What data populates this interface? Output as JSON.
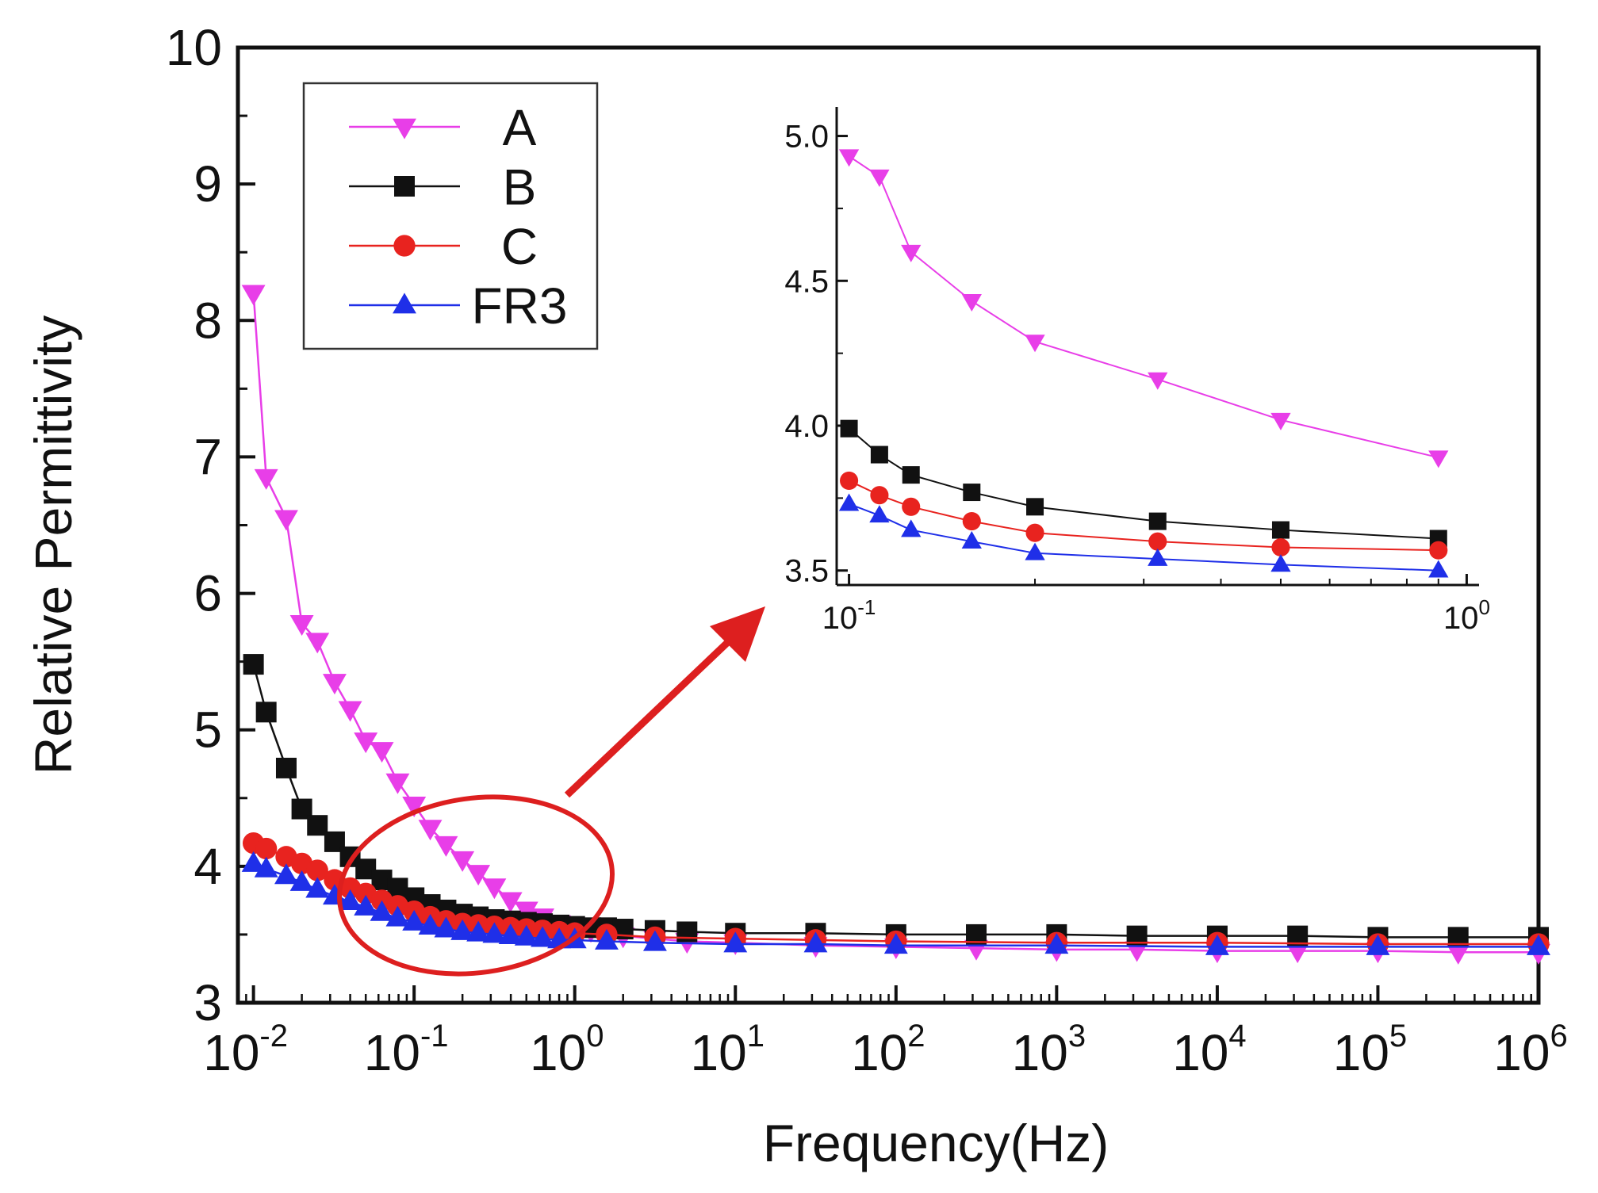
{
  "chart_data": [
    {
      "type": "line",
      "xscale": "log",
      "xlabel": "Frequency(Hz)",
      "ylabel": "Relative Permittivity",
      "ylim": [
        3,
        10
      ],
      "xlim": [
        0.008,
        1000000
      ],
      "yticks": [
        "3",
        "4",
        "5",
        "6",
        "7",
        "8",
        "9",
        "10"
      ],
      "xticks": [
        {
          "base": "10",
          "exp": "-2",
          "value": 0.01
        },
        {
          "base": "10",
          "exp": "-1",
          "value": 0.1
        },
        {
          "base": "10",
          "exp": "0",
          "value": 1
        },
        {
          "base": "10",
          "exp": "1",
          "value": 10
        },
        {
          "base": "10",
          "exp": "2",
          "value": 100
        },
        {
          "base": "10",
          "exp": "3",
          "value": 1000
        },
        {
          "base": "10",
          "exp": "4",
          "value": 10000
        },
        {
          "base": "10",
          "exp": "5",
          "value": 100000
        },
        {
          "base": "10",
          "exp": "6",
          "value": 1000000
        }
      ],
      "legend_position": "top-left",
      "series": [
        {
          "name": "A",
          "color": "#e83ee8",
          "marker": "triangle-down",
          "x": [
            0.01,
            0.012,
            0.016,
            0.02,
            0.025,
            0.032,
            0.04,
            0.05,
            0.063,
            0.079,
            0.1,
            0.126,
            0.158,
            0.2,
            0.251,
            0.316,
            0.398,
            0.5,
            0.63,
            0.8,
            1.0,
            1.26,
            1.58,
            2.0,
            3.16,
            5.0,
            10,
            31.6,
            100,
            316,
            1000,
            3162,
            10000,
            31623,
            100000,
            316228,
            1000000
          ],
          "values": [
            8.2,
            6.85,
            6.55,
            5.78,
            5.65,
            5.35,
            5.15,
            4.92,
            4.85,
            4.62,
            4.45,
            4.28,
            4.16,
            4.05,
            3.95,
            3.85,
            3.75,
            3.68,
            3.63,
            3.58,
            3.55,
            3.53,
            3.51,
            3.49,
            3.47,
            3.45,
            3.44,
            3.42,
            3.41,
            3.4,
            3.39,
            3.39,
            3.38,
            3.38,
            3.38,
            3.37,
            3.37
          ]
        },
        {
          "name": "B",
          "color": "#111111",
          "marker": "square",
          "x": [
            0.01,
            0.012,
            0.016,
            0.02,
            0.025,
            0.032,
            0.04,
            0.05,
            0.063,
            0.079,
            0.1,
            0.126,
            0.158,
            0.2,
            0.251,
            0.316,
            0.398,
            0.5,
            0.63,
            0.8,
            1.0,
            1.26,
            1.58,
            2.0,
            3.16,
            5.0,
            10,
            31.6,
            100,
            316,
            1000,
            3162,
            10000,
            31623,
            100000,
            316228,
            1000000
          ],
          "values": [
            5.48,
            5.13,
            4.72,
            4.42,
            4.3,
            4.18,
            4.07,
            3.98,
            3.9,
            3.84,
            3.77,
            3.72,
            3.68,
            3.65,
            3.63,
            3.61,
            3.6,
            3.59,
            3.58,
            3.57,
            3.56,
            3.55,
            3.55,
            3.54,
            3.53,
            3.52,
            3.51,
            3.51,
            3.5,
            3.5,
            3.5,
            3.49,
            3.49,
            3.49,
            3.48,
            3.48,
            3.48
          ]
        },
        {
          "name": "C",
          "color": "#e8231f",
          "marker": "circle",
          "x": [
            0.01,
            0.012,
            0.016,
            0.02,
            0.025,
            0.032,
            0.04,
            0.05,
            0.063,
            0.079,
            0.1,
            0.126,
            0.158,
            0.2,
            0.251,
            0.316,
            0.398,
            0.5,
            0.63,
            0.8,
            1.0,
            1.58,
            3.16,
            10,
            31.6,
            100,
            1000,
            10000,
            100000,
            1000000
          ],
          "values": [
            4.17,
            4.13,
            4.07,
            4.02,
            3.97,
            3.9,
            3.84,
            3.8,
            3.75,
            3.71,
            3.67,
            3.63,
            3.6,
            3.58,
            3.57,
            3.56,
            3.55,
            3.54,
            3.53,
            3.52,
            3.51,
            3.5,
            3.48,
            3.47,
            3.46,
            3.45,
            3.44,
            3.44,
            3.43,
            3.43
          ]
        },
        {
          "name": "FR3",
          "color": "#1f2fe8",
          "marker": "triangle-up",
          "x": [
            0.01,
            0.012,
            0.016,
            0.02,
            0.025,
            0.032,
            0.04,
            0.05,
            0.063,
            0.079,
            0.1,
            0.126,
            0.158,
            0.2,
            0.251,
            0.316,
            0.398,
            0.5,
            0.63,
            0.8,
            1.0,
            1.58,
            3.16,
            10,
            31.6,
            100,
            1000,
            10000,
            100000,
            1000000
          ],
          "values": [
            4.02,
            3.98,
            3.93,
            3.88,
            3.83,
            3.78,
            3.74,
            3.7,
            3.66,
            3.62,
            3.59,
            3.56,
            3.54,
            3.52,
            3.51,
            3.5,
            3.49,
            3.48,
            3.47,
            3.46,
            3.46,
            3.45,
            3.44,
            3.43,
            3.43,
            3.42,
            3.42,
            3.41,
            3.41,
            3.41
          ]
        }
      ]
    },
    {
      "type": "line",
      "role": "inset",
      "xscale": "log",
      "xlim": [
        0.1,
        1.0
      ],
      "ylim": [
        3.45,
        5.1
      ],
      "yticks": [
        "3.5",
        "4.0",
        "4.5",
        "5.0"
      ],
      "xticks": [
        {
          "base": "10",
          "exp": "-1",
          "value": 0.1
        },
        {
          "base": "10",
          "exp": "0",
          "value": 1
        }
      ],
      "series": [
        {
          "name": "A",
          "color": "#e83ee8",
          "marker": "triangle-down",
          "x": [
            0.1,
            0.112,
            0.126,
            0.158,
            0.2,
            0.316,
            0.5,
            0.9
          ],
          "values": [
            4.93,
            4.86,
            4.6,
            4.43,
            4.29,
            4.16,
            4.02,
            3.89
          ]
        },
        {
          "name": "B",
          "color": "#111111",
          "marker": "square",
          "x": [
            0.1,
            0.112,
            0.126,
            0.158,
            0.2,
            0.316,
            0.5,
            0.9
          ],
          "values": [
            3.99,
            3.9,
            3.83,
            3.77,
            3.72,
            3.67,
            3.64,
            3.61
          ]
        },
        {
          "name": "C",
          "color": "#e8231f",
          "marker": "circle",
          "x": [
            0.1,
            0.112,
            0.126,
            0.158,
            0.2,
            0.316,
            0.5,
            0.9
          ],
          "values": [
            3.81,
            3.76,
            3.72,
            3.67,
            3.63,
            3.6,
            3.58,
            3.57
          ]
        },
        {
          "name": "FR3",
          "color": "#1f2fe8",
          "marker": "triangle-up",
          "x": [
            0.1,
            0.112,
            0.126,
            0.158,
            0.2,
            0.316,
            0.5,
            0.9
          ],
          "values": [
            3.73,
            3.69,
            3.64,
            3.6,
            3.56,
            3.54,
            3.52,
            3.5
          ]
        }
      ]
    }
  ]
}
